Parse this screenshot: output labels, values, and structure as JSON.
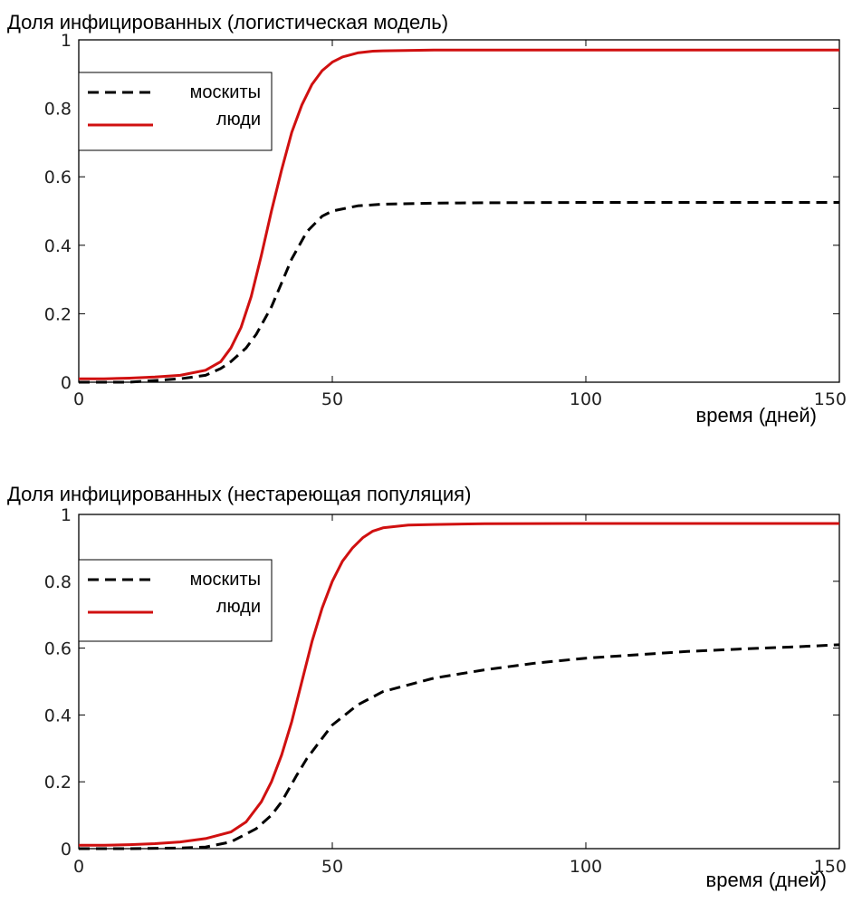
{
  "chart_data": [
    {
      "type": "line",
      "title": "Доля инфицированных (логистическая модель)",
      "xlabel": "время (дней)",
      "ylabel": "",
      "xlim": [
        0,
        150
      ],
      "ylim": [
        0,
        1
      ],
      "xticks": [
        "0",
        "50",
        "100",
        "150"
      ],
      "yticks": [
        "0",
        "0.2",
        "0.4",
        "0.6",
        "0.8",
        "1"
      ],
      "grid": false,
      "legend": "top-left",
      "series": [
        {
          "name": "москиты",
          "style": "dashed",
          "color": "#000000",
          "x": [
            0,
            5,
            10,
            15,
            20,
            25,
            28,
            30,
            33,
            35,
            38,
            40,
            42,
            45,
            48,
            50,
            55,
            60,
            70,
            80,
            100,
            120,
            150
          ],
          "y": [
            0.0,
            0.0,
            0.0,
            0.005,
            0.01,
            0.02,
            0.04,
            0.06,
            0.1,
            0.14,
            0.22,
            0.29,
            0.36,
            0.44,
            0.485,
            0.5,
            0.515,
            0.52,
            0.523,
            0.524,
            0.525,
            0.525,
            0.525
          ]
        },
        {
          "name": "люди",
          "style": "solid",
          "color": "#d01010",
          "x": [
            0,
            5,
            10,
            15,
            20,
            25,
            28,
            30,
            32,
            34,
            36,
            38,
            40,
            42,
            44,
            46,
            48,
            50,
            52,
            55,
            58,
            60,
            70,
            80,
            100,
            120,
            150
          ],
          "y": [
            0.01,
            0.01,
            0.012,
            0.015,
            0.02,
            0.035,
            0.06,
            0.1,
            0.16,
            0.25,
            0.37,
            0.5,
            0.62,
            0.73,
            0.81,
            0.87,
            0.91,
            0.935,
            0.95,
            0.962,
            0.967,
            0.968,
            0.97,
            0.97,
            0.97,
            0.97,
            0.97
          ]
        }
      ]
    },
    {
      "type": "line",
      "title": "Доля инфицированных (нестареющая популяция)",
      "xlabel": "время (дней)",
      "ylabel": "",
      "xlim": [
        0,
        150
      ],
      "ylim": [
        0,
        1
      ],
      "xticks": [
        "0",
        "50",
        "100",
        "150"
      ],
      "yticks": [
        "0",
        "0.2",
        "0.4",
        "0.6",
        "0.8",
        "1"
      ],
      "grid": false,
      "legend": "top-left",
      "series": [
        {
          "name": "москиты",
          "style": "dashed",
          "color": "#000000",
          "x": [
            0,
            10,
            20,
            25,
            30,
            35,
            38,
            40,
            43,
            45,
            48,
            50,
            55,
            60,
            70,
            80,
            90,
            100,
            110,
            120,
            130,
            140,
            150
          ],
          "y": [
            0.0,
            0.0,
            0.002,
            0.005,
            0.02,
            0.06,
            0.1,
            0.14,
            0.22,
            0.27,
            0.33,
            0.37,
            0.43,
            0.47,
            0.51,
            0.535,
            0.555,
            0.57,
            0.58,
            0.59,
            0.597,
            0.603,
            0.61
          ]
        },
        {
          "name": "люди",
          "style": "solid",
          "color": "#d01010",
          "x": [
            0,
            5,
            10,
            15,
            20,
            25,
            30,
            33,
            36,
            38,
            40,
            42,
            44,
            46,
            48,
            50,
            52,
            54,
            56,
            58,
            60,
            65,
            70,
            80,
            100,
            120,
            150
          ],
          "y": [
            0.01,
            0.01,
            0.012,
            0.015,
            0.02,
            0.03,
            0.05,
            0.08,
            0.14,
            0.2,
            0.28,
            0.38,
            0.5,
            0.62,
            0.72,
            0.8,
            0.86,
            0.9,
            0.93,
            0.95,
            0.96,
            0.968,
            0.97,
            0.972,
            0.973,
            0.973,
            0.973
          ]
        }
      ]
    }
  ]
}
